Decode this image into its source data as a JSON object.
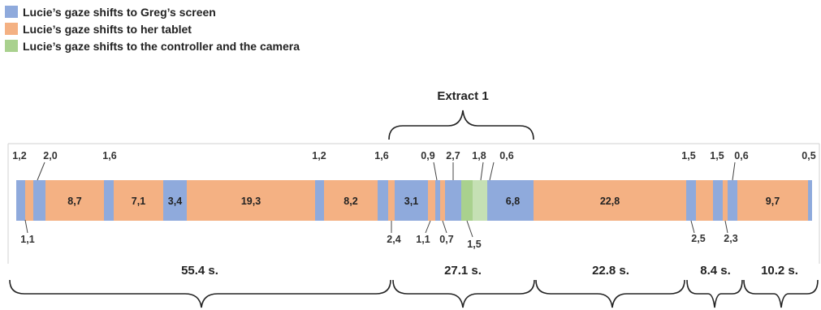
{
  "colors": {
    "screen": "#8FAADC",
    "tablet": "#F4B183",
    "controller": "#A9D18E",
    "controller_light": "#C5E0B4"
  },
  "legend": [
    {
      "label": "Lucie’s gaze shifts to Greg’s screen",
      "color": "#8FAADC"
    },
    {
      "label": "Lucie’s gaze shifts to her tablet",
      "color": "#F4B183"
    },
    {
      "label": "Lucie’s gaze shifts to the controller and the camera",
      "color": "#A9D18E"
    }
  ],
  "extract_label": "Extract 1",
  "segments": [
    {
      "value": "1,2",
      "kind": "screen"
    },
    {
      "value": "1,1",
      "kind": "tablet"
    },
    {
      "value": "2,0",
      "kind": "screen"
    },
    {
      "value": "8,7",
      "kind": "tablet"
    },
    {
      "value": "1,6",
      "kind": "screen"
    },
    {
      "value": "7,1",
      "kind": "tablet"
    },
    {
      "value": "3,4",
      "kind": "screen"
    },
    {
      "value": "19,3",
      "kind": "tablet"
    },
    {
      "value": "1,2",
      "kind": "screen"
    },
    {
      "value": "8,2",
      "kind": "tablet"
    },
    {
      "value": "1,6",
      "kind": "screen"
    },
    {
      "value": "2,4",
      "kind": "tablet"
    },
    {
      "value": "3,1",
      "kind": "screen"
    },
    {
      "value": "1,1",
      "kind": "tablet"
    },
    {
      "value": "0,9",
      "kind": "screen"
    },
    {
      "value": "0,7",
      "kind": "tablet"
    },
    {
      "value": "2,7",
      "kind": "screen"
    },
    {
      "value": "1,5",
      "kind": "controller"
    },
    {
      "value": "1,8",
      "kind": "controller_light"
    },
    {
      "value": "0,6",
      "kind": "screen"
    },
    {
      "value": "6,8",
      "kind": "screen"
    },
    {
      "value": "22,8",
      "kind": "tablet"
    },
    {
      "value": "1,5",
      "kind": "screen"
    },
    {
      "value": "2,5",
      "kind": "tablet"
    },
    {
      "value": "1,5",
      "kind": "screen"
    },
    {
      "value": "2,3",
      "kind": "tablet"
    },
    {
      "value": "0,6",
      "kind": "screen"
    },
    {
      "value": "9,7",
      "kind": "tablet"
    },
    {
      "value": "0,5",
      "kind": "screen"
    }
  ],
  "durations": [
    "55.4 s.",
    "27.1 s.",
    "22.8 s.",
    "8.4 s.",
    "10.2 s."
  ]
}
